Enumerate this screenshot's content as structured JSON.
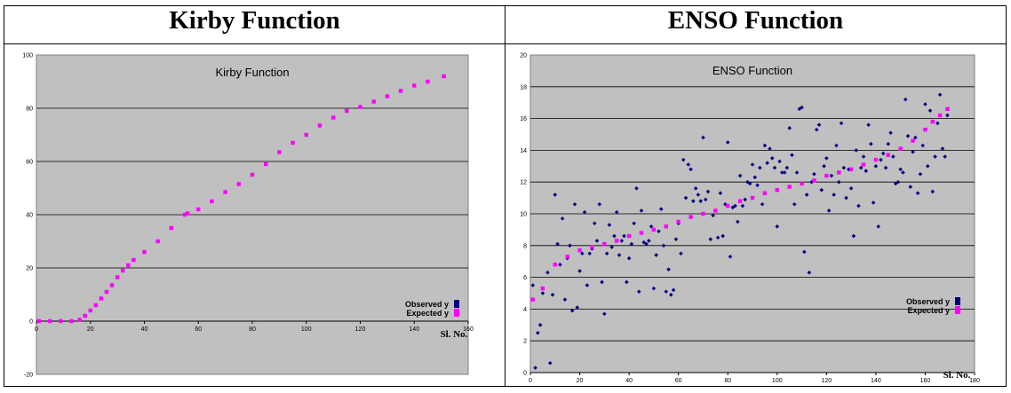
{
  "headers": {
    "left": "Kirby Function",
    "right": "ENSO Function"
  },
  "chart_data": [
    {
      "type": "scatter",
      "title": "Kirby Function",
      "xlabel": "Sl. No.",
      "ylabel": "",
      "xlim": [
        0,
        160
      ],
      "ylim": [
        -20,
        100
      ],
      "xticks": [
        0,
        20,
        40,
        60,
        80,
        100,
        120,
        140,
        160
      ],
      "yticks": [
        -20,
        0,
        20,
        40,
        60,
        80,
        100
      ],
      "grid": "horizontal",
      "legend": "right",
      "plot_background": "#c0c0c0",
      "series": [
        {
          "name": "Observed y",
          "color": "#000080",
          "marker": "diamond",
          "x": [
            1,
            5,
            9,
            13,
            16,
            18,
            20,
            22,
            24,
            26,
            28,
            30,
            32,
            34,
            36,
            40,
            45,
            50,
            55,
            56,
            60,
            65,
            70,
            75,
            80,
            85,
            90,
            95,
            100,
            105,
            110,
            115,
            120,
            125,
            130,
            135,
            140,
            145,
            151
          ],
          "y": [
            0,
            0,
            0,
            0,
            0.5,
            2,
            4,
            6,
            8.5,
            11,
            13.5,
            16.5,
            19,
            21,
            23,
            26,
            30,
            35,
            40,
            40.5,
            42,
            45,
            48.5,
            51.5,
            55,
            59,
            63.5,
            67,
            70,
            73.5,
            76.5,
            79,
            80.5,
            82.5,
            84.5,
            86.5,
            88.5,
            90,
            92
          ]
        },
        {
          "name": "Expected y",
          "color": "#ff00ff",
          "marker": "square",
          "x": [
            1,
            5,
            9,
            13,
            16,
            18,
            20,
            22,
            24,
            26,
            28,
            30,
            32,
            34,
            36,
            40,
            45,
            50,
            55,
            56,
            60,
            65,
            70,
            75,
            80,
            85,
            90,
            95,
            100,
            105,
            110,
            115,
            120,
            125,
            130,
            135,
            140,
            145,
            151
          ],
          "y": [
            0,
            0,
            0,
            0,
            0.5,
            2,
            4,
            6,
            8.5,
            11,
            13.5,
            16.5,
            19,
            21,
            23,
            26,
            30,
            35,
            40,
            40.5,
            42,
            45,
            48.5,
            51.5,
            55,
            59,
            63.5,
            67,
            70,
            73.5,
            76.5,
            79,
            80.5,
            82.5,
            84.5,
            86.5,
            88.5,
            90,
            92
          ]
        }
      ]
    },
    {
      "type": "scatter",
      "title": "ENSO Function",
      "xlabel": "Sl. No.",
      "ylabel": "",
      "xlim": [
        0,
        180
      ],
      "ylim": [
        0,
        20
      ],
      "xticks": [
        0,
        20,
        40,
        60,
        80,
        100,
        120,
        140,
        160,
        180
      ],
      "yticks": [
        0,
        2,
        4,
        6,
        8,
        10,
        12,
        14,
        16,
        18,
        20
      ],
      "grid": "horizontal",
      "legend": "right",
      "plot_background": "#c0c0c0",
      "series": [
        {
          "name": "Observed y",
          "color": "#000080",
          "marker": "diamond",
          "x": [
            1,
            2,
            3,
            4,
            5,
            7,
            8,
            9,
            10,
            11,
            12,
            13,
            14,
            15,
            16,
            17,
            18,
            19,
            20,
            21,
            22,
            23,
            24,
            25,
            26,
            27,
            28,
            29,
            30,
            31,
            32,
            33,
            34,
            35,
            36,
            37,
            38,
            39,
            40,
            41,
            42,
            43,
            44,
            45,
            46,
            47,
            48,
            49,
            50,
            51,
            52,
            53,
            54,
            55,
            56,
            57,
            58,
            59,
            60,
            61,
            62,
            63,
            64,
            65,
            66,
            67,
            68,
            69,
            70,
            71,
            72,
            73,
            74,
            75,
            76,
            77,
            78,
            79,
            80,
            81,
            82,
            83,
            84,
            85,
            86,
            87,
            88,
            89,
            90,
            91,
            92,
            93,
            94,
            95,
            96,
            97,
            98,
            99,
            100,
            101,
            102,
            103,
            104,
            105,
            106,
            107,
            108,
            109,
            110,
            111,
            112,
            113,
            114,
            115,
            116,
            117,
            118,
            119,
            120,
            121,
            122,
            123,
            124,
            125,
            126,
            127,
            128,
            129,
            130,
            131,
            132,
            133,
            134,
            135,
            136,
            137,
            138,
            139,
            140,
            141,
            142,
            143,
            144,
            145,
            146,
            147,
            148,
            149,
            150,
            151,
            152,
            153,
            154,
            155,
            156,
            157,
            158,
            159,
            160,
            161,
            162,
            163,
            164,
            165,
            166,
            167,
            168,
            169
          ],
          "y": [
            5.5,
            0.3,
            2.5,
            3,
            5,
            6.3,
            0.6,
            4.9,
            11.2,
            8.1,
            6.8,
            9.7,
            4.6,
            7.2,
            8,
            3.9,
            10.6,
            4.1,
            6.4,
            7.5,
            10.1,
            5.5,
            7.5,
            7.8,
            9.4,
            8.3,
            10.6,
            5.7,
            3.7,
            7.5,
            9.3,
            7.9,
            8.6,
            10.1,
            7.4,
            8.3,
            8.6,
            5.7,
            7.2,
            8.1,
            9.4,
            11.6,
            5.1,
            10.2,
            8.2,
            8.1,
            8.3,
            9.2,
            5.3,
            7.4,
            8.9,
            10.3,
            8,
            5.1,
            6.5,
            4.9,
            5.2,
            8.4,
            9.4,
            7.5,
            13.4,
            11,
            13.1,
            12.8,
            10.8,
            11.6,
            11.2,
            10.8,
            14.8,
            10.9,
            11.4,
            8.4,
            9.9,
            10.2,
            8.5,
            11.3,
            8.6,
            10.6,
            14.5,
            7.3,
            10.4,
            10.5,
            9.5,
            12.4,
            10.5,
            10.9,
            12,
            11.9,
            13.1,
            12.3,
            11.8,
            12.9,
            10.6,
            14.3,
            13.2,
            14.1,
            13.5,
            12.9,
            9.2,
            13.3,
            12.6,
            12.6,
            12.9,
            15.4,
            13.7,
            10.6,
            12.6,
            16.6,
            16.7,
            7.6,
            11.2,
            6.3,
            12,
            12.5,
            15.3,
            15.6,
            11.5,
            13,
            13.5,
            10.2,
            12.4,
            11.2,
            14.3,
            12,
            15.7,
            12.9,
            11,
            12.8,
            11.6,
            8.6,
            14,
            10.5,
            12.9,
            13.6,
            12.7,
            15.6,
            14.4,
            10.7,
            13,
            9.2,
            13.4,
            13.8,
            12.9,
            14.4,
            15.1,
            13.6,
            11.9,
            12,
            12.8,
            12.6,
            17.2,
            14.9,
            11.7,
            13.9,
            14.8,
            11.3,
            12.5,
            14.3,
            16.9,
            13,
            16.5,
            11.4,
            13.6,
            15.7,
            17.5,
            14.1,
            13.6,
            16.2
          ]
        },
        {
          "name": "Expected y",
          "color": "#ff00ff",
          "marker": "square",
          "x": [
            1,
            5,
            10,
            15,
            20,
            25,
            30,
            35,
            40,
            45,
            50,
            55,
            60,
            65,
            70,
            75,
            80,
            85,
            90,
            95,
            100,
            105,
            110,
            115,
            120,
            125,
            130,
            135,
            140,
            145,
            150,
            155,
            160,
            163,
            166,
            169
          ],
          "y": [
            4.6,
            5.3,
            6.8,
            7.3,
            7.7,
            7.9,
            8.1,
            8.3,
            8.6,
            8.8,
            9,
            9.2,
            9.5,
            9.8,
            10,
            10.2,
            10.5,
            10.8,
            11,
            11.3,
            11.5,
            11.7,
            11.9,
            12.1,
            12.4,
            12.6,
            12.8,
            13.1,
            13.4,
            13.7,
            14.1,
            14.6,
            15.3,
            15.8,
            16.2,
            16.6
          ]
        }
      ]
    }
  ]
}
